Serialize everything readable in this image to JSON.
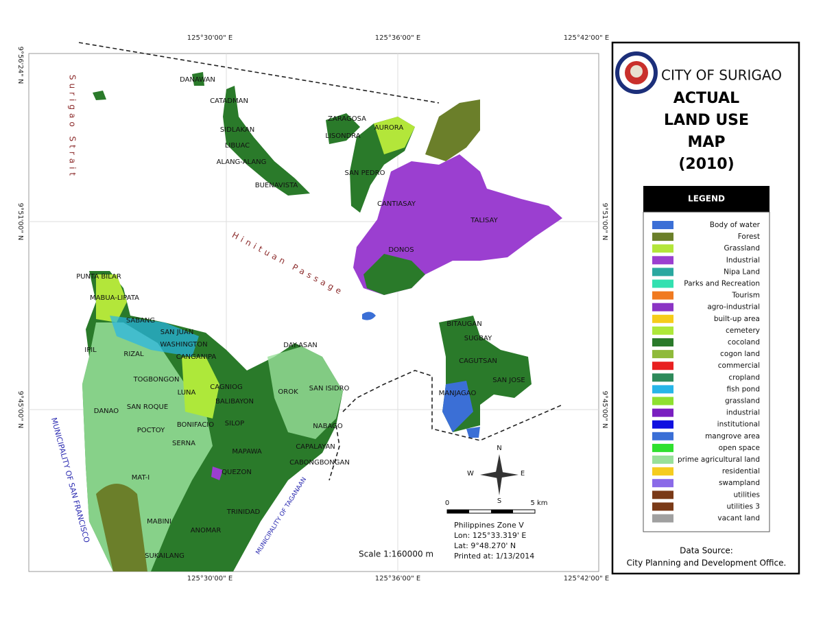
{
  "header": {
    "city": "CITY OF SURIGAO",
    "title_lines": [
      "ACTUAL",
      "LAND USE",
      "MAP",
      "(2010)"
    ]
  },
  "legend": {
    "title": "LEGEND",
    "items": [
      {
        "label": "Body of water",
        "color": "#3b6fd6"
      },
      {
        "label": "Forest",
        "color": "#6b7f2a"
      },
      {
        "label": "Grassland",
        "color": "#b3e63a"
      },
      {
        "label": "Industrial",
        "color": "#9b3fd0"
      },
      {
        "label": "Nipa Land",
        "color": "#2aa8a0"
      },
      {
        "label": "Parks and Recreation",
        "color": "#33e0b0"
      },
      {
        "label": "Tourism",
        "color": "#f07a20"
      },
      {
        "label": "agro-industrial",
        "color": "#8b34c4"
      },
      {
        "label": "built-up area",
        "color": "#f6cc1a"
      },
      {
        "label": "cemetery",
        "color": "#aee83a"
      },
      {
        "label": "cocoland",
        "color": "#2a7a2a"
      },
      {
        "label": "cogon land",
        "color": "#8fba3a"
      },
      {
        "label": "commercial",
        "color": "#e82020"
      },
      {
        "label": "cropland",
        "color": "#2e8a5a"
      },
      {
        "label": "fish pond",
        "color": "#27b5e8"
      },
      {
        "label": "grassland",
        "color": "#8fe030"
      },
      {
        "label": "industrial",
        "color": "#7a1fc0"
      },
      {
        "label": "institutional",
        "color": "#1010e0"
      },
      {
        "label": "mangrove area",
        "color": "#3a6fd6"
      },
      {
        "label": "open space",
        "color": "#2fe02f"
      },
      {
        "label": "prime agricultural land",
        "color": "#98e09a"
      },
      {
        "label": "residential",
        "color": "#f5cc20"
      },
      {
        "label": "swampland",
        "color": "#8a6ae8"
      },
      {
        "label": "utilities",
        "color": "#7a3a18"
      },
      {
        "label": "utilities 3",
        "color": "#7a3a18"
      },
      {
        "label": "vacant land",
        "color": "#a0a0a0"
      }
    ]
  },
  "source": {
    "label": "Data Source:",
    "text": "City Planning and Development Office."
  },
  "map": {
    "top_ticks": [
      "125°30'00\" E",
      "125°36'00\" E",
      "125°42'00\" E"
    ],
    "bottom_ticks": [
      "125°30'00\" E",
      "125°36'00\" E",
      "125°42'00\" E"
    ],
    "left_ticks": [
      "9°56'24\" N",
      "9°51'00\" N",
      "9°45'00\" N"
    ],
    "right_ticks": [
      "9°51'00\" N",
      "9°45'00\" N"
    ],
    "places": [
      "DANAWAN",
      "CATADMAN",
      "SIDLAKAN",
      "LIBUAC",
      "ALANG-ALANG",
      "BUENAVISTA",
      "ZARAGOSA",
      "AURORA",
      "LISONDRA",
      "SAN PEDRO",
      "CANTIASAY",
      "TALISAY",
      "DONOS",
      "PUNTA BILAR",
      "MABUA-LIPATA",
      "SABANG",
      "SAN JUAN",
      "WASHINGTON",
      "CANGANIPA",
      "IPIL",
      "RIZAL",
      "DAY-ASAN",
      "TOGBONGON",
      "CAGNIOG",
      "LUNA",
      "BALIBAYON",
      "OROK",
      "SAN ISIDRO",
      "DANAO",
      "SAN ROQUE",
      "BONIFACIO",
      "SILOP",
      "NABAGO",
      "POCTOY",
      "SERNA",
      "MAPAWA",
      "CAPALAYAN",
      "CABONGBONGAN",
      "QUEZON",
      "MAT-I",
      "TRINIDAD",
      "MABINI",
      "ANOMAR",
      "SUKAILANG",
      "BITAUGAN",
      "SUGBAY",
      "CAGUTSAN",
      "SAN JOSE",
      "MANJAGAO"
    ],
    "water": {
      "strait": "Surigao Strait",
      "passage": "Hinituan Passage"
    },
    "municipalities": {
      "west": "MUNICIPALITY OF SAN FRANCISCO",
      "south": "MUNICIPALITY OF TAGANAAN"
    },
    "compass": {
      "n": "N",
      "s": "S",
      "e": "E",
      "w": "W"
    },
    "scalebar": {
      "start": "0",
      "end": "5 km"
    },
    "scale": "Scale 1:160000 m",
    "info": [
      "Philippines Zone V",
      "Lon: 125°33.319' E",
      "Lat: 9°48.270' N",
      "Printed at: 1/13/2014"
    ]
  }
}
